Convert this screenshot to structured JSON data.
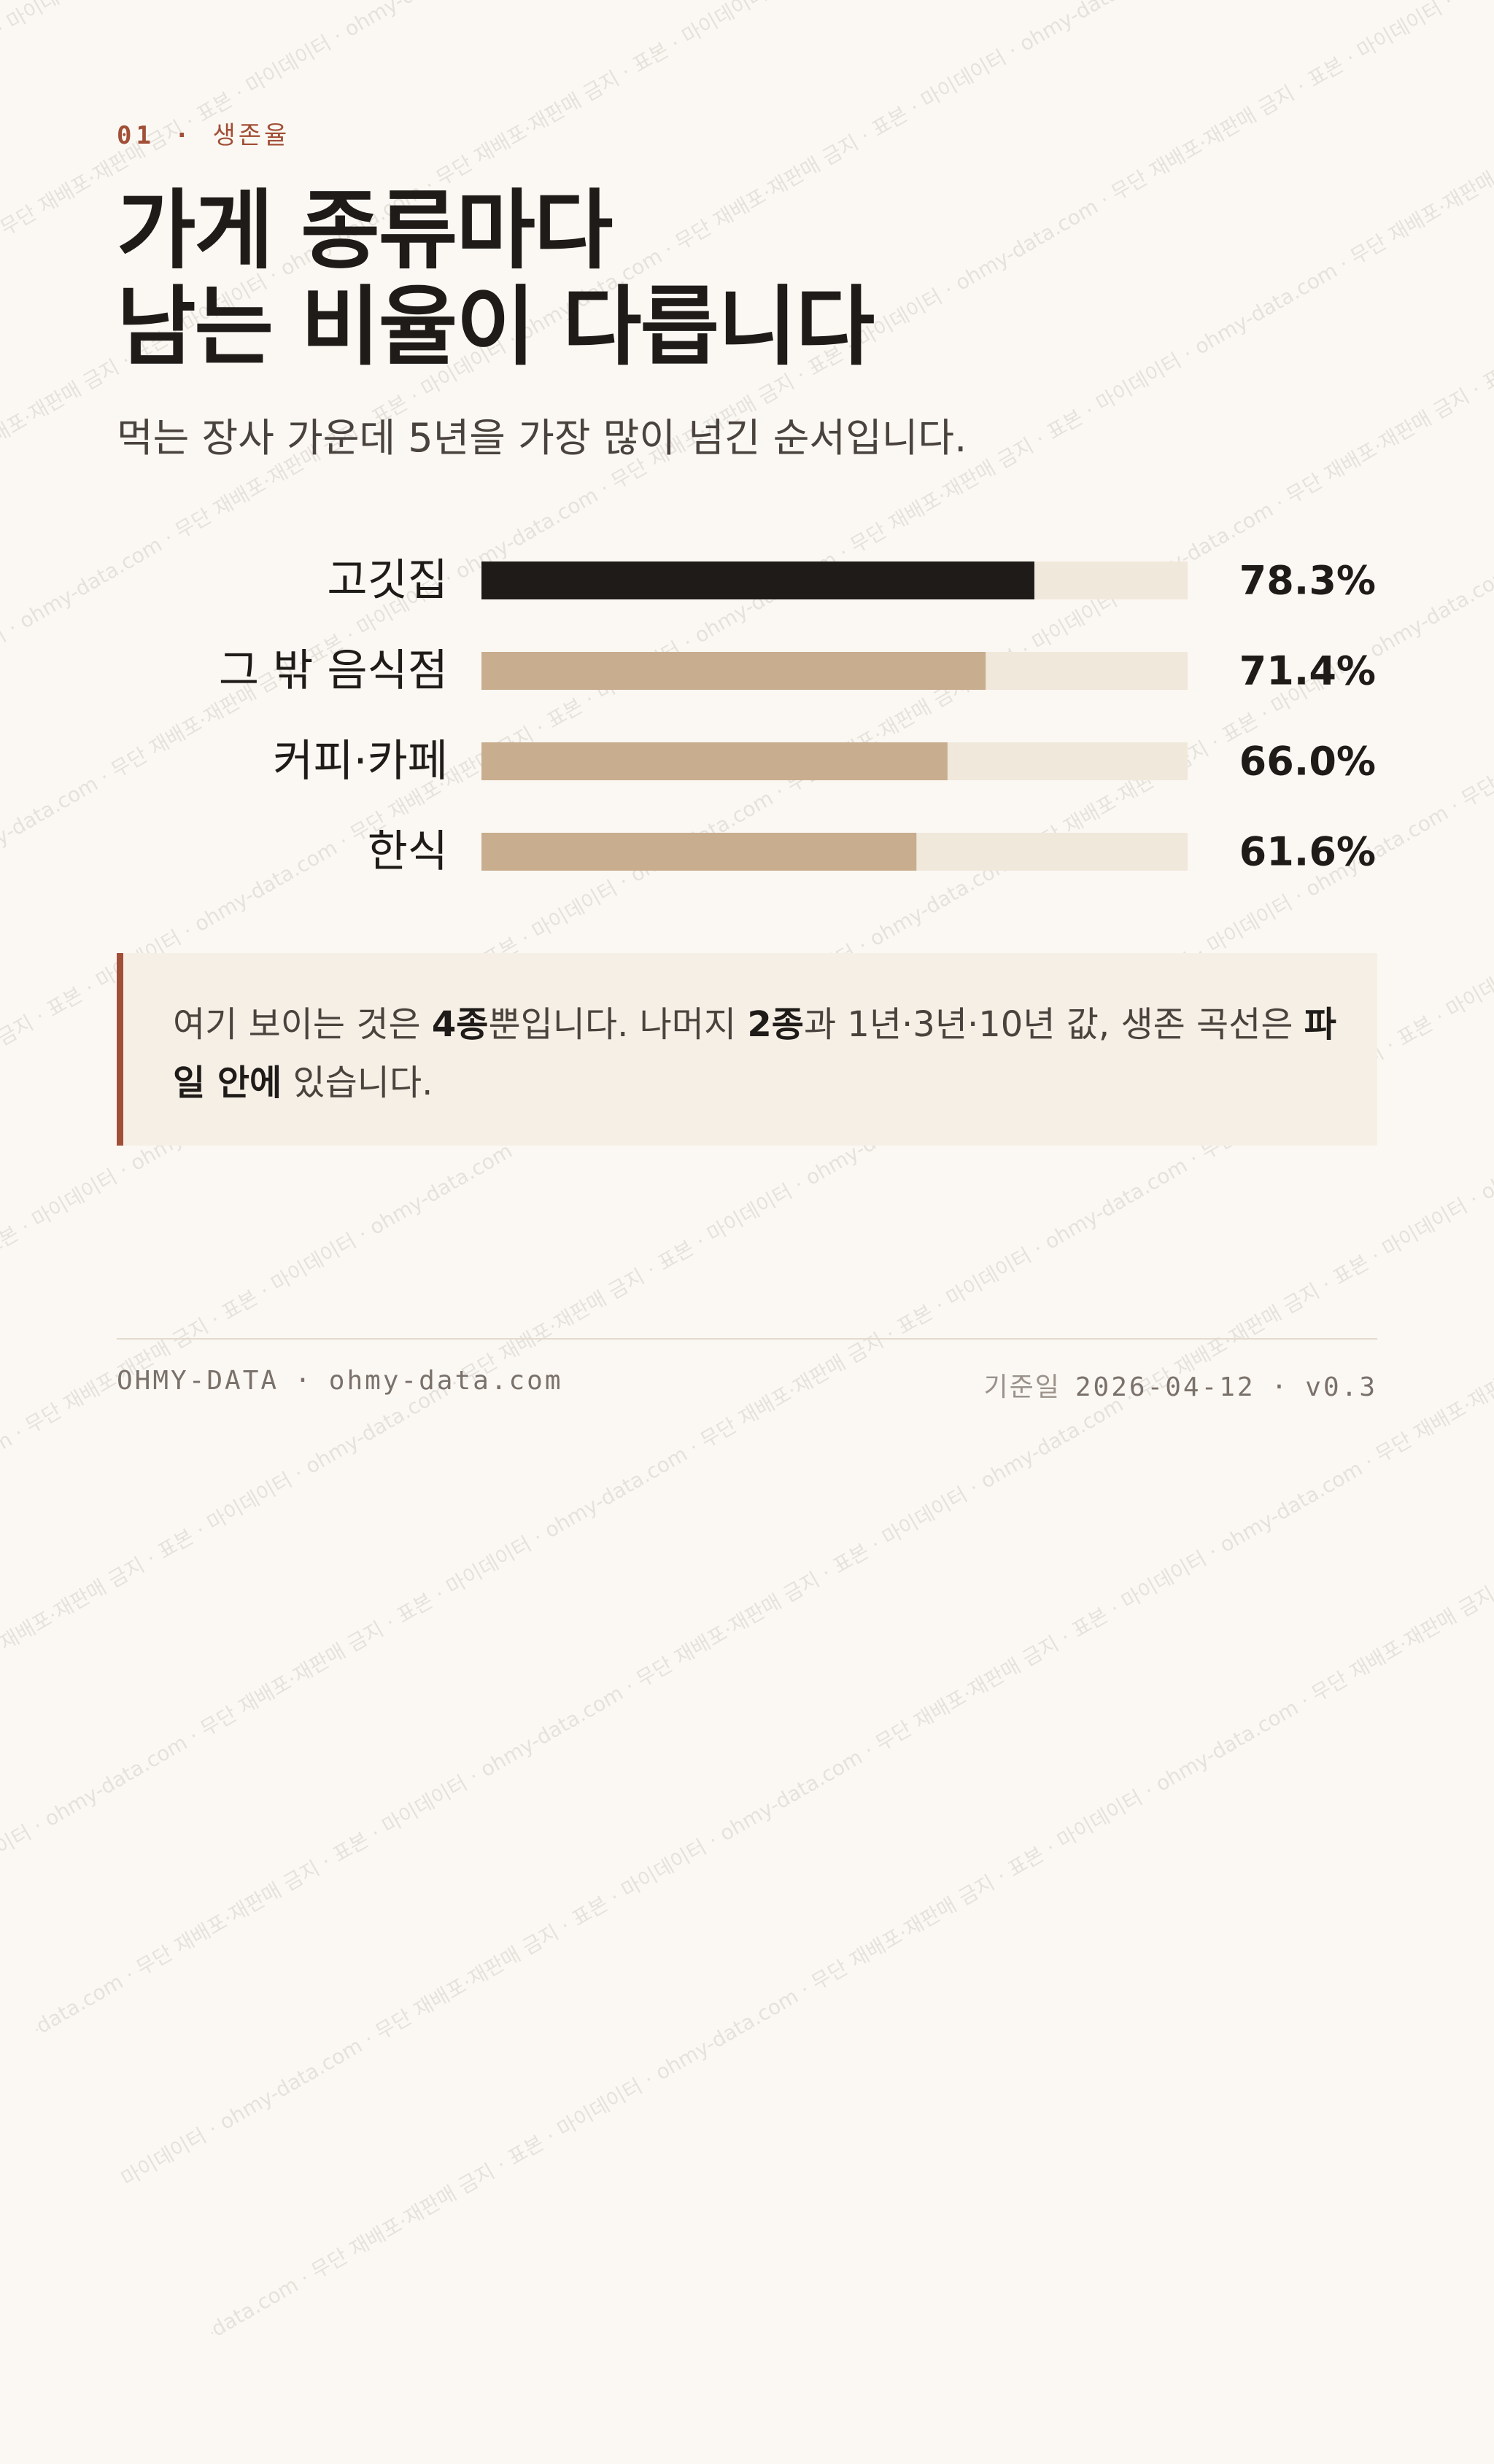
{
  "header": {
    "eyebrow_num": "01",
    "eyebrow_sep": "·",
    "eyebrow_label": "생존율",
    "title_line1": "가게 종류마다",
    "title_line2": "남는 비율이 다릅니다",
    "subtitle": "먹는 장사 가운데 5년을 가장 많이 넘긴 순서입니다."
  },
  "chart_data": {
    "type": "bar",
    "orientation": "horizontal",
    "categories": [
      "고깃집",
      "그 밖 음식점",
      "커피·카페",
      "한식"
    ],
    "values": [
      78.3,
      71.4,
      66.0,
      61.6
    ],
    "value_labels": [
      "78.3%",
      "71.4%",
      "66.0%",
      "61.6%"
    ],
    "xlim": [
      0,
      100
    ],
    "unit": "%",
    "highlight_index": 0,
    "colors": {
      "highlight": "#1f1b18",
      "bar": "#c8ad8e",
      "track": "#f1e8dc"
    }
  },
  "note": {
    "part1": "여기 보이는 것은 ",
    "bold1": "4종",
    "part2": "뿐입니다. 나머지 ",
    "bold2": "2종",
    "part3": "과 1년·3년·10년 값, 생존 곡선은 ",
    "bold3": "파일 안에",
    "part4": " 있습니다."
  },
  "footer": {
    "brand": "OHMY-DATA",
    "sep": "·",
    "url": "ohmy-data.com",
    "date_label": "기준일",
    "date": "2026-04-12",
    "version": "v0.3"
  },
  "watermark": {
    "text": "마이데이터 · ohmy-data.com · 무단 재배포·재판매 금지 · 표본"
  },
  "colors": {
    "accent": "#a14f37",
    "background": "#fbf8f3",
    "note_bg": "#f6efe6"
  }
}
